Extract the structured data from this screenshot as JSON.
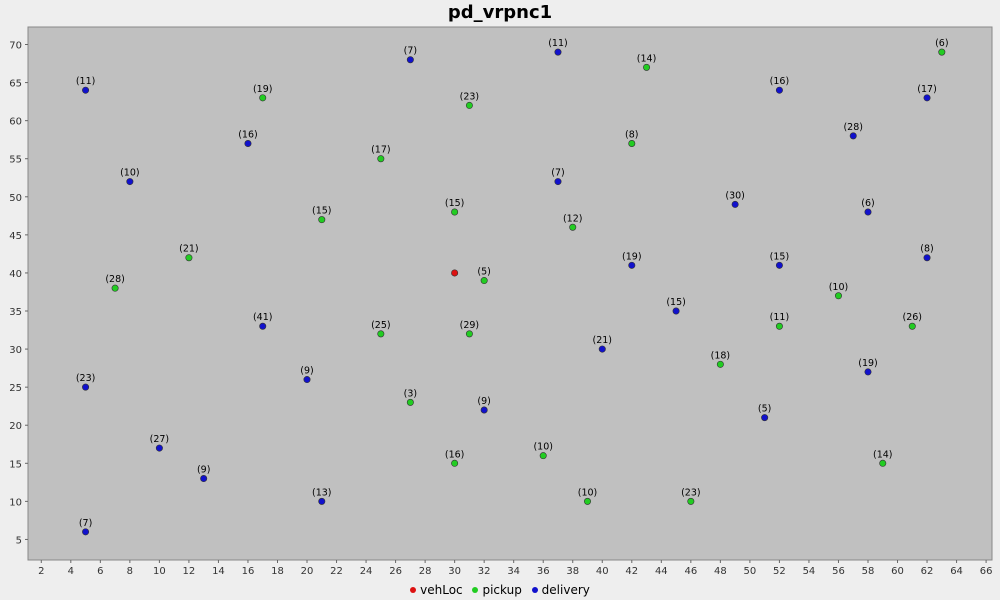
{
  "chart_data": {
    "type": "scatter",
    "title": "pd_vrpnc1",
    "xlabel": "",
    "ylabel": "",
    "xlim": [
      1.1,
      66.4
    ],
    "ylim": [
      2.3,
      72.3
    ],
    "xticks": [
      2,
      4,
      6,
      8,
      10,
      12,
      14,
      16,
      18,
      20,
      22,
      24,
      26,
      28,
      30,
      32,
      34,
      36,
      38,
      40,
      42,
      44,
      46,
      48,
      50,
      52,
      54,
      56,
      58,
      60,
      62,
      64,
      66
    ],
    "yticks": [
      5,
      10,
      15,
      20,
      25,
      30,
      35,
      40,
      45,
      50,
      55,
      60,
      65,
      70
    ],
    "grid": false,
    "legend_position": "bottom",
    "colors": {
      "vehLoc": "#dd1111",
      "pickup": "#22cc22",
      "delivery": "#1111cc",
      "plot_bg": "#c0c0c0"
    },
    "series": [
      {
        "name": "vehLoc",
        "points": [
          {
            "x": 30,
            "y": 40,
            "label": ""
          }
        ]
      },
      {
        "name": "pickup",
        "points": [
          {
            "x": 43,
            "y": 67,
            "label": "(14)"
          },
          {
            "x": 63,
            "y": 69,
            "label": "(6)"
          },
          {
            "x": 17,
            "y": 63,
            "label": "(19)"
          },
          {
            "x": 31,
            "y": 62,
            "label": "(23)"
          },
          {
            "x": 42,
            "y": 57,
            "label": "(8)"
          },
          {
            "x": 25,
            "y": 55,
            "label": "(17)"
          },
          {
            "x": 30,
            "y": 48,
            "label": "(15)"
          },
          {
            "x": 21,
            "y": 47,
            "label": "(15)"
          },
          {
            "x": 38,
            "y": 46,
            "label": "(12)"
          },
          {
            "x": 12,
            "y": 42,
            "label": "(21)"
          },
          {
            "x": 32,
            "y": 39,
            "label": "(5)"
          },
          {
            "x": 7,
            "y": 38,
            "label": "(28)"
          },
          {
            "x": 56,
            "y": 37,
            "label": "(10)"
          },
          {
            "x": 52,
            "y": 33,
            "label": "(11)"
          },
          {
            "x": 61,
            "y": 33,
            "label": "(26)"
          },
          {
            "x": 25,
            "y": 32,
            "label": "(25)"
          },
          {
            "x": 31,
            "y": 32,
            "label": "(29)"
          },
          {
            "x": 48,
            "y": 28,
            "label": "(18)"
          },
          {
            "x": 27,
            "y": 23,
            "label": "(3)"
          },
          {
            "x": 30,
            "y": 15,
            "label": "(16)"
          },
          {
            "x": 36,
            "y": 16,
            "label": "(10)"
          },
          {
            "x": 59,
            "y": 15,
            "label": "(14)"
          },
          {
            "x": 39,
            "y": 10,
            "label": "(10)"
          },
          {
            "x": 46,
            "y": 10,
            "label": "(23)"
          }
        ]
      },
      {
        "name": "delivery",
        "points": [
          {
            "x": 27,
            "y": 68,
            "label": "(7)"
          },
          {
            "x": 37,
            "y": 69,
            "label": "(11)"
          },
          {
            "x": 5,
            "y": 64,
            "label": "(11)"
          },
          {
            "x": 52,
            "y": 64,
            "label": "(16)"
          },
          {
            "x": 62,
            "y": 63,
            "label": "(17)"
          },
          {
            "x": 57,
            "y": 58,
            "label": "(28)"
          },
          {
            "x": 16,
            "y": 57,
            "label": "(16)"
          },
          {
            "x": 8,
            "y": 52,
            "label": "(10)"
          },
          {
            "x": 37,
            "y": 52,
            "label": "(7)"
          },
          {
            "x": 49,
            "y": 49,
            "label": "(30)"
          },
          {
            "x": 58,
            "y": 48,
            "label": "(6)"
          },
          {
            "x": 42,
            "y": 41,
            "label": "(19)"
          },
          {
            "x": 52,
            "y": 41,
            "label": "(15)"
          },
          {
            "x": 62,
            "y": 42,
            "label": "(8)"
          },
          {
            "x": 45,
            "y": 35,
            "label": "(15)"
          },
          {
            "x": 17,
            "y": 33,
            "label": "(41)"
          },
          {
            "x": 40,
            "y": 30,
            "label": "(21)"
          },
          {
            "x": 58,
            "y": 27,
            "label": "(19)"
          },
          {
            "x": 20,
            "y": 26,
            "label": "(9)"
          },
          {
            "x": 5,
            "y": 25,
            "label": "(23)"
          },
          {
            "x": 32,
            "y": 22,
            "label": "(9)"
          },
          {
            "x": 51,
            "y": 21,
            "label": "(5)"
          },
          {
            "x": 10,
            "y": 17,
            "label": "(27)"
          },
          {
            "x": 13,
            "y": 13,
            "label": "(9)"
          },
          {
            "x": 21,
            "y": 10,
            "label": "(13)"
          },
          {
            "x": 5,
            "y": 6,
            "label": "(7)"
          }
        ]
      }
    ]
  }
}
